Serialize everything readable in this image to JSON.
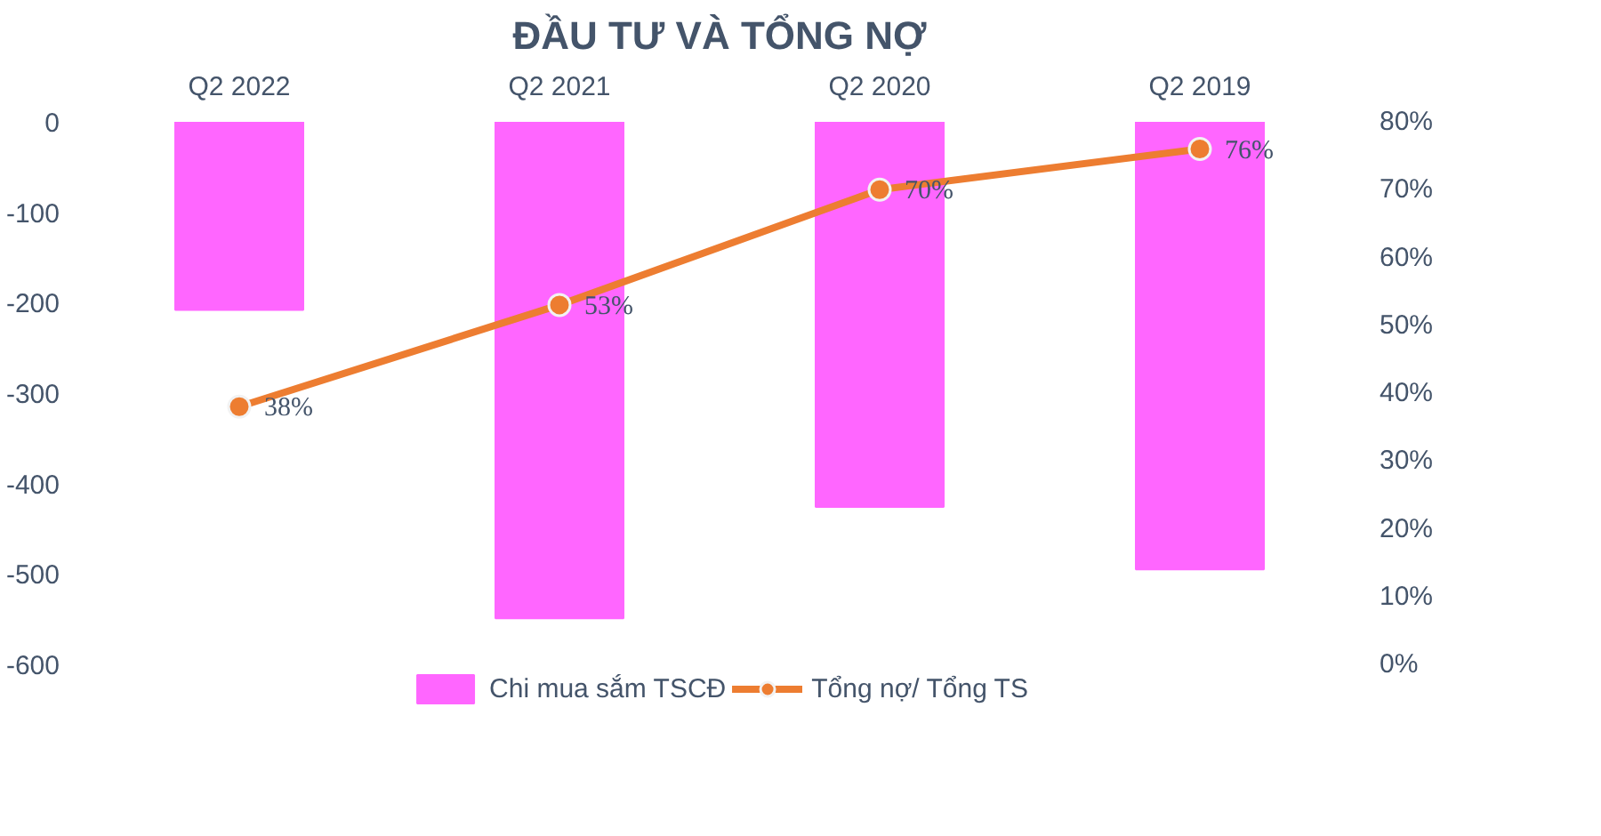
{
  "chart_data": {
    "type": "bar",
    "title": "ĐẦU TƯ VÀ TỔNG NỢ",
    "categories": [
      "Q2 2022",
      "Q2 2021",
      "Q2 2020",
      "Q2 2019"
    ],
    "series": [
      {
        "name": "Chi mua sắm TSCĐ",
        "color": "#ff66ff",
        "values": [
          -208,
          -549,
          -426,
          -495
        ]
      },
      {
        "name": "Tổng nợ/ Tổng TS",
        "type": "line",
        "axis": "y2",
        "color": "#ed7d31",
        "marker": "circle",
        "values": [
          38,
          53,
          70,
          76
        ],
        "value_labels": [
          "38%",
          "53%",
          "70%",
          "76%"
        ]
      }
    ],
    "ylim": [
      -600,
      0
    ],
    "yticks": [
      -600,
      -500,
      -400,
      -300,
      -200,
      -100,
      0
    ],
    "y2lim": [
      0,
      80
    ],
    "y2ticks": [
      {
        "value": 0,
        "label": "0%"
      },
      {
        "value": 10,
        "label": "10%"
      },
      {
        "value": 20,
        "label": "20%"
      },
      {
        "value": 30,
        "label": "30%"
      },
      {
        "value": 40,
        "label": "40%"
      },
      {
        "value": 50,
        "label": "50%"
      },
      {
        "value": 60,
        "label": "60%"
      },
      {
        "value": 70,
        "label": "70%"
      },
      {
        "value": 80,
        "label": "80%"
      }
    ],
    "grid": false,
    "legend": "bottom"
  }
}
